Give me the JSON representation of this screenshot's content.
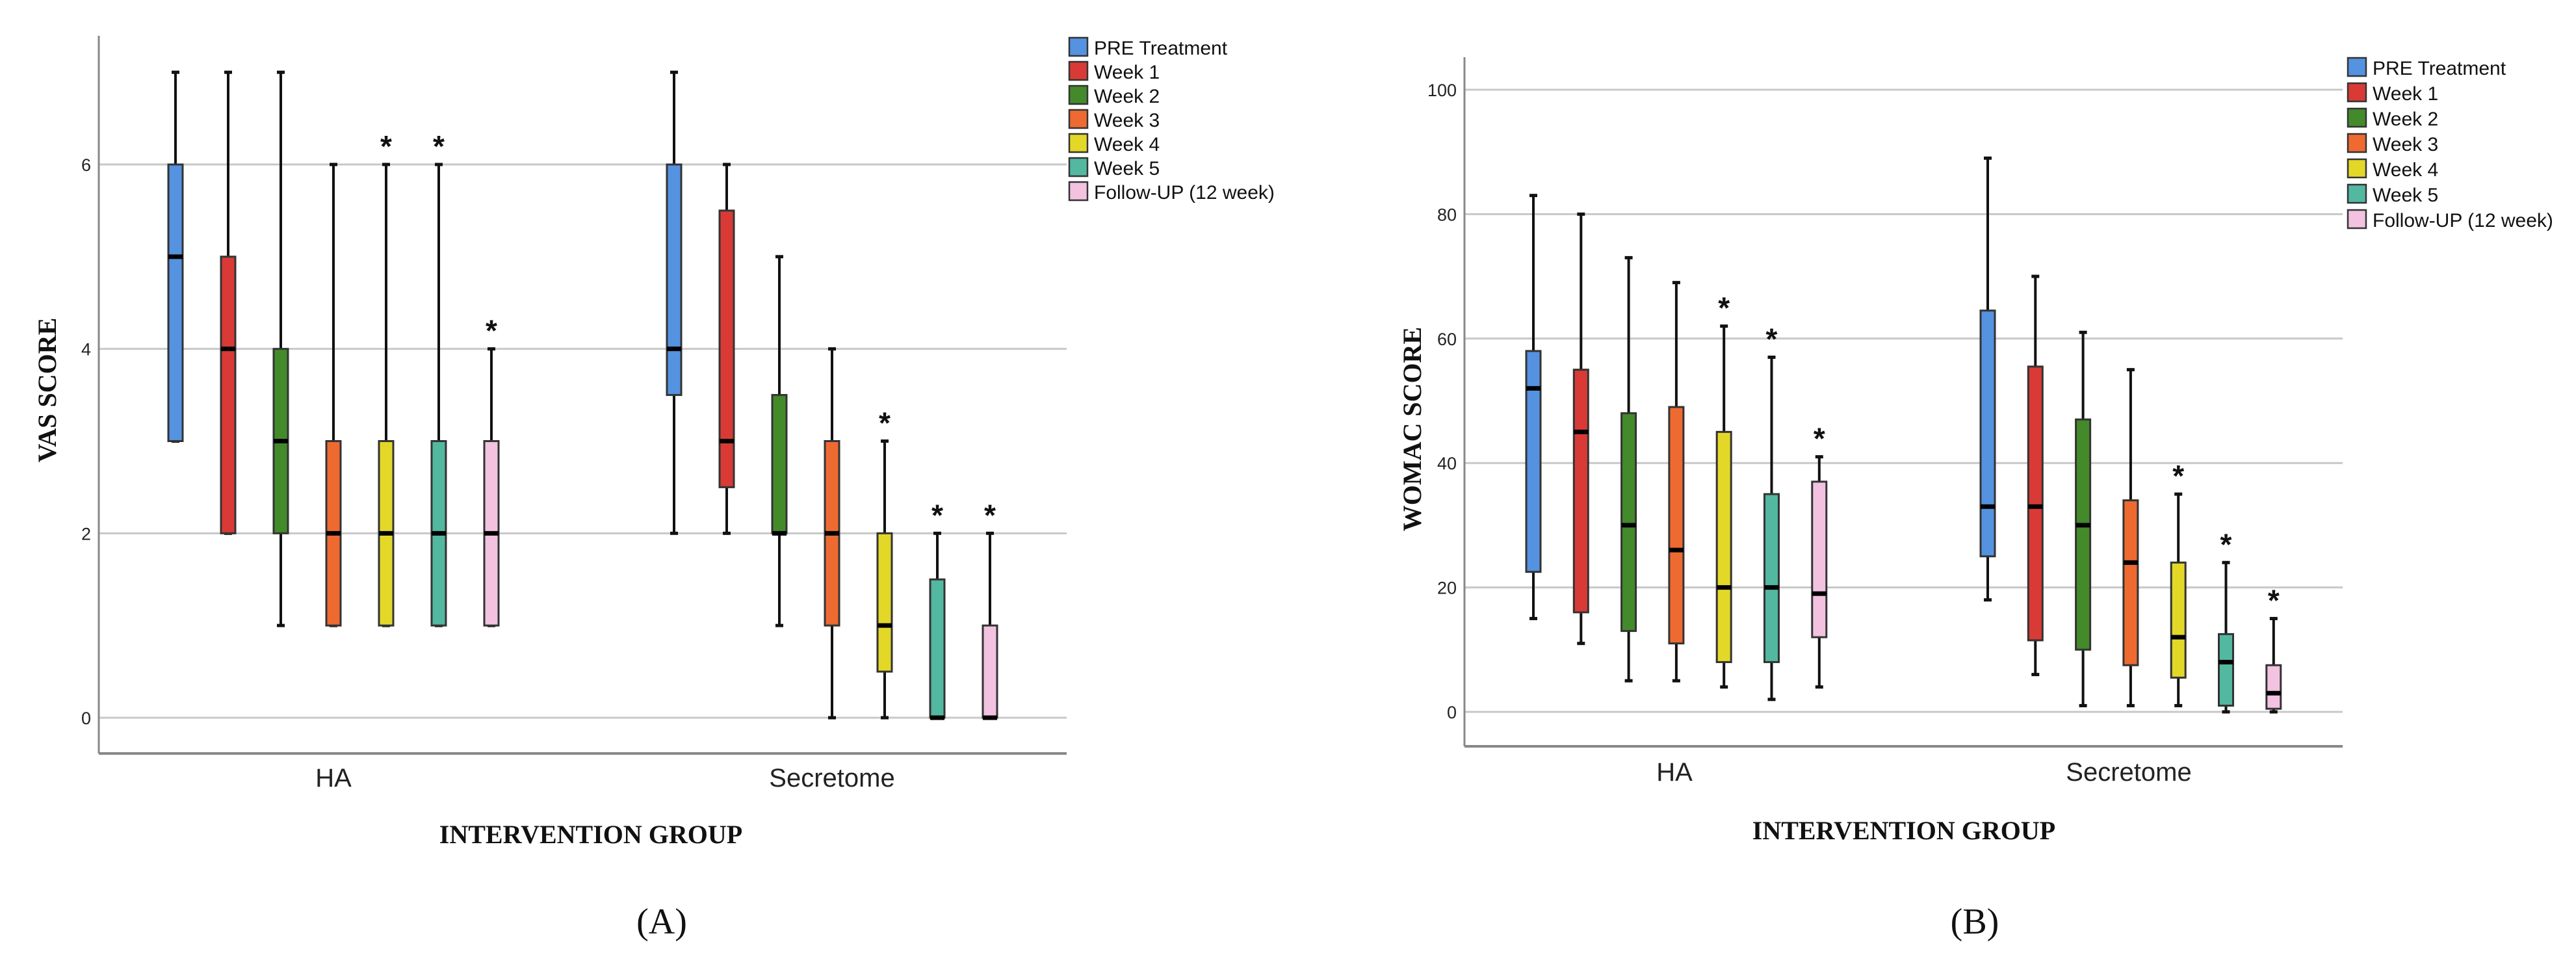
{
  "legend_colors": [
    "#5592e0",
    "#d93a35",
    "#438a2b",
    "#ee6a31",
    "#e3d828",
    "#52b8a0",
    "#f2c2e0"
  ],
  "chart_data": [
    {
      "panel_label": "(A)",
      "type": "boxplot",
      "xlabel": "INTERVENTION GROUP",
      "ylabel": "VAS SCORE",
      "ylim": [
        0,
        7.4
      ],
      "yticks": [
        0,
        2,
        4,
        6
      ],
      "grid": true,
      "legend_position": "top-right",
      "significance_marker": "*",
      "categories": [
        "HA",
        "Secretome"
      ],
      "series": [
        {
          "name": "PRE Treatment",
          "boxes": [
            {
              "min": 3,
              "q1": 3,
              "median": 5,
              "q3": 6,
              "max": 7,
              "marked": false
            },
            {
              "min": 2,
              "q1": 3.5,
              "median": 4,
              "q3": 6,
              "max": 7,
              "marked": false
            }
          ]
        },
        {
          "name": "Week 1",
          "boxes": [
            {
              "min": 2,
              "q1": 2,
              "median": 4,
              "q3": 5,
              "max": 7,
              "marked": false
            },
            {
              "min": 2,
              "q1": 2.5,
              "median": 3,
              "q3": 5.5,
              "max": 6,
              "marked": false
            }
          ]
        },
        {
          "name": "Week 2",
          "boxes": [
            {
              "min": 1,
              "q1": 2,
              "median": 3,
              "q3": 4,
              "max": 7,
              "marked": false
            },
            {
              "min": 1,
              "q1": 2,
              "median": 2,
              "q3": 3.5,
              "max": 5,
              "marked": false
            }
          ]
        },
        {
          "name": "Week 3",
          "boxes": [
            {
              "min": 1,
              "q1": 1,
              "median": 2,
              "q3": 3,
              "max": 6,
              "marked": false
            },
            {
              "min": 0,
              "q1": 1,
              "median": 2,
              "q3": 3,
              "max": 4,
              "marked": false
            }
          ]
        },
        {
          "name": "Week 4",
          "boxes": [
            {
              "min": 1,
              "q1": 1,
              "median": 2,
              "q3": 3,
              "max": 6,
              "marked": true
            },
            {
              "min": 0,
              "q1": 0.5,
              "median": 1,
              "q3": 2,
              "max": 3,
              "marked": true
            }
          ]
        },
        {
          "name": "Week 5",
          "boxes": [
            {
              "min": 1,
              "q1": 1,
              "median": 2,
              "q3": 3,
              "max": 6,
              "marked": true
            },
            {
              "min": 0,
              "q1": 0,
              "median": 0,
              "q3": 1.5,
              "max": 2,
              "marked": true
            }
          ]
        },
        {
          "name": "Follow-UP (12 week)",
          "boxes": [
            {
              "min": 1,
              "q1": 1,
              "median": 2,
              "q3": 3,
              "max": 4,
              "marked": true
            },
            {
              "min": 0,
              "q1": 0,
              "median": 0,
              "q3": 1,
              "max": 2,
              "marked": true
            }
          ]
        }
      ]
    },
    {
      "panel_label": "(B)",
      "type": "boxplot",
      "xlabel": "INTERVENTION GROUP",
      "ylabel": "WOMAC SCORE",
      "ylim": [
        -5,
        104.6
      ],
      "yticks": [
        0,
        20,
        40,
        60,
        80,
        100
      ],
      "grid": true,
      "legend_position": "top-right",
      "significance_marker": "*",
      "categories": [
        "HA",
        "Secretome"
      ],
      "series": [
        {
          "name": "PRE Treatment",
          "boxes": [
            {
              "min": 15,
              "q1": 22.5,
              "median": 52,
              "q3": 58,
              "max": 83,
              "marked": false
            },
            {
              "min": 18,
              "q1": 25,
              "median": 33,
              "q3": 64.5,
              "max": 89,
              "marked": false
            }
          ]
        },
        {
          "name": "Week 1",
          "boxes": [
            {
              "min": 11,
              "q1": 16,
              "median": 45,
              "q3": 55,
              "max": 80,
              "marked": false
            },
            {
              "min": 6,
              "q1": 11.5,
              "median": 33,
              "q3": 55.5,
              "max": 70,
              "marked": false
            }
          ]
        },
        {
          "name": "Week 2",
          "boxes": [
            {
              "min": 5,
              "q1": 13,
              "median": 30,
              "q3": 48,
              "max": 73,
              "marked": false
            },
            {
              "min": 1,
              "q1": 10,
              "median": 30,
              "q3": 47,
              "max": 61,
              "marked": false
            }
          ]
        },
        {
          "name": "Week 3",
          "boxes": [
            {
              "min": 5,
              "q1": 11,
              "median": 26,
              "q3": 49,
              "max": 69,
              "marked": false
            },
            {
              "min": 1,
              "q1": 7.5,
              "median": 24,
              "q3": 34,
              "max": 55,
              "marked": false
            }
          ]
        },
        {
          "name": "Week 4",
          "boxes": [
            {
              "min": 4,
              "q1": 8,
              "median": 20,
              "q3": 45,
              "max": 62,
              "marked": true
            },
            {
              "min": 1,
              "q1": 5.5,
              "median": 12,
              "q3": 24,
              "max": 35,
              "marked": true
            }
          ]
        },
        {
          "name": "Week 5",
          "boxes": [
            {
              "min": 2,
              "q1": 8,
              "median": 20,
              "q3": 35,
              "max": 57,
              "marked": true
            },
            {
              "min": 0,
              "q1": 1,
              "median": 8,
              "q3": 12.5,
              "max": 24,
              "marked": true
            }
          ]
        },
        {
          "name": "Follow-UP (12 week)",
          "boxes": [
            {
              "min": 4,
              "q1": 12,
              "median": 19,
              "q3": 37,
              "max": 41,
              "marked": true
            },
            {
              "min": 0,
              "q1": 0.5,
              "median": 3,
              "q3": 7.5,
              "max": 15,
              "marked": true
            }
          ]
        }
      ]
    }
  ]
}
